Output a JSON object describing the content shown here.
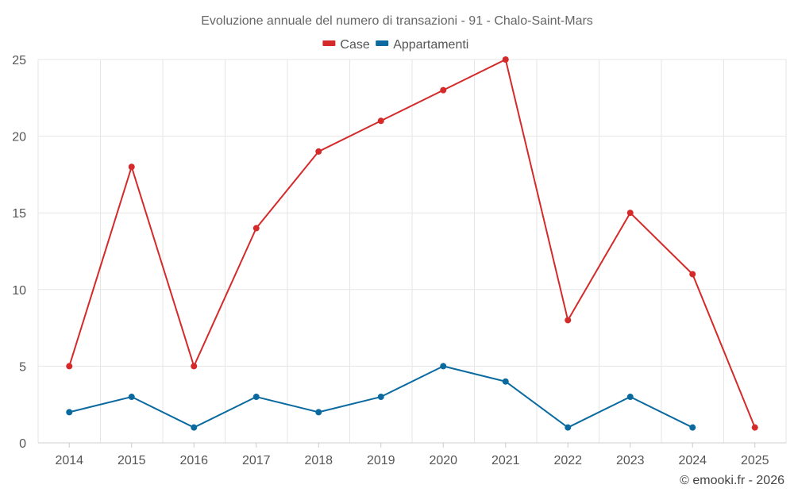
{
  "chart_data": {
    "type": "line",
    "title": "Evoluzione annuale del numero di transazioni - 91 - Chalo-Saint-Mars",
    "categories": [
      "2014",
      "2015",
      "2016",
      "2017",
      "2018",
      "2019",
      "2020",
      "2021",
      "2022",
      "2023",
      "2024",
      "2025"
    ],
    "series": [
      {
        "name": "Case",
        "color": "#d42a2a",
        "values": [
          5,
          18,
          5,
          14,
          19,
          21,
          23,
          25,
          8,
          15,
          11,
          1
        ]
      },
      {
        "name": "Appartamenti",
        "color": "#0a6a9f",
        "values": [
          2,
          3,
          1,
          3,
          2,
          3,
          5,
          4,
          1,
          3,
          1,
          null
        ]
      }
    ],
    "ylim": [
      0,
      25
    ],
    "yticks": [
      0,
      5,
      10,
      15,
      20,
      25
    ],
    "xlabel": "",
    "ylabel": "",
    "grid": true,
    "legend_position": "top-center"
  },
  "credit": "© emooki.fr - 2026"
}
